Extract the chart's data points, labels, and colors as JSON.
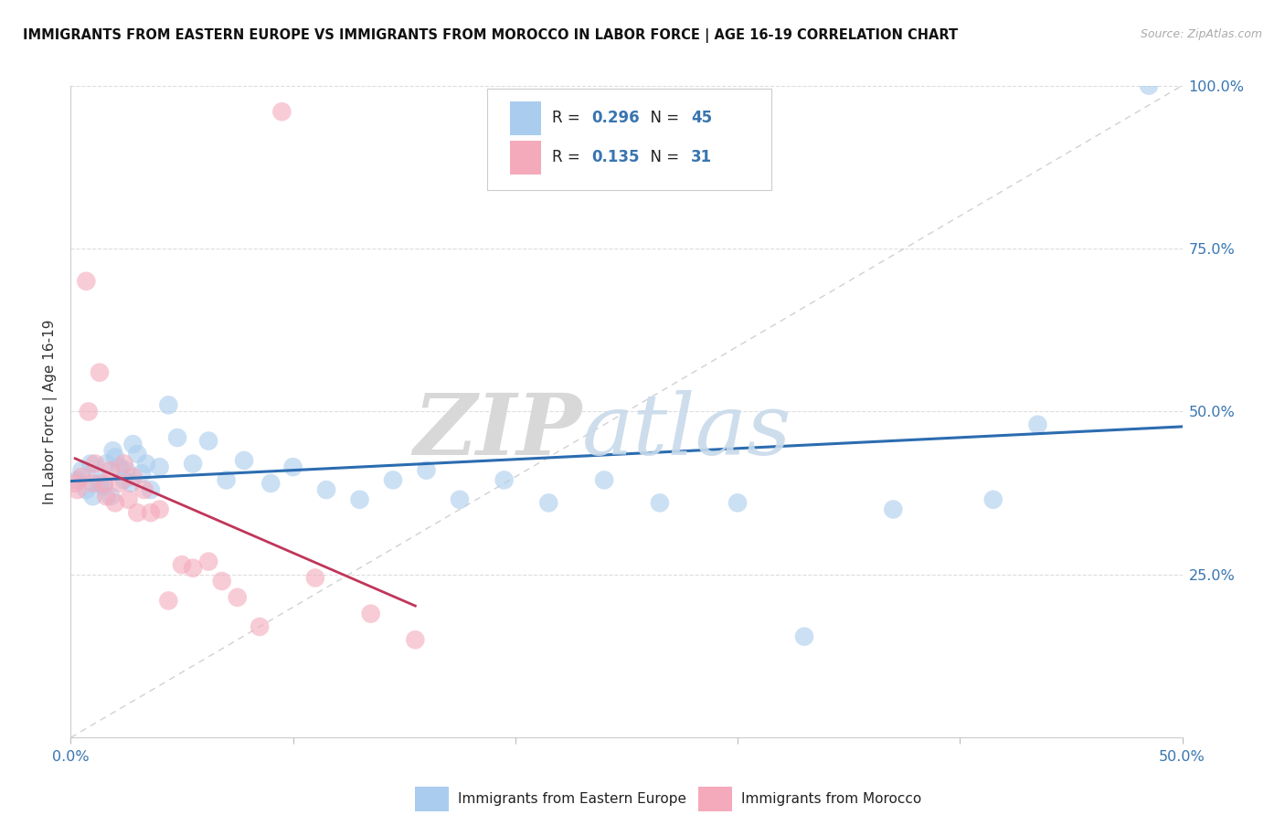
{
  "title": "IMMIGRANTS FROM EASTERN EUROPE VS IMMIGRANTS FROM MOROCCO IN LABOR FORCE | AGE 16-19 CORRELATION CHART",
  "source": "Source: ZipAtlas.com",
  "ylabel": "In Labor Force | Age 16-19",
  "xlim": [
    0.0,
    0.5
  ],
  "ylim": [
    0.0,
    1.0
  ],
  "x_ticks": [
    0.0,
    0.1,
    0.2,
    0.3,
    0.4,
    0.5
  ],
  "x_tick_labels": [
    "0.0%",
    "",
    "",
    "",
    "",
    "50.0%"
  ],
  "y_ticks": [
    0.0,
    0.25,
    0.5,
    0.75,
    1.0
  ],
  "y_tick_labels": [
    "",
    "25.0%",
    "50.0%",
    "75.0%",
    "100.0%"
  ],
  "blue_R": "0.296",
  "blue_N": "45",
  "pink_R": "0.135",
  "pink_N": "31",
  "blue_color": "#aaccee",
  "pink_color": "#f4aabb",
  "blue_line_color": "#2b6cb0",
  "pink_line_color": "#c0365a",
  "grid_color": "#dddddd",
  "grid_style": "--",
  "watermark_zip": "ZIP",
  "watermark_atlas": "atlas",
  "bg_color": "#ffffff",
  "blue_scatter_x": [
    0.003,
    0.005,
    0.007,
    0.009,
    0.01,
    0.012,
    0.013,
    0.015,
    0.016,
    0.018,
    0.019,
    0.02,
    0.022,
    0.024,
    0.025,
    0.027,
    0.028,
    0.03,
    0.032,
    0.034,
    0.036,
    0.04,
    0.044,
    0.048,
    0.055,
    0.062,
    0.07,
    0.078,
    0.09,
    0.1,
    0.115,
    0.13,
    0.145,
    0.16,
    0.175,
    0.195,
    0.215,
    0.24,
    0.265,
    0.3,
    0.33,
    0.37,
    0.415,
    0.435,
    0.485
  ],
  "blue_scatter_y": [
    0.395,
    0.41,
    0.38,
    0.42,
    0.37,
    0.4,
    0.39,
    0.385,
    0.42,
    0.37,
    0.44,
    0.43,
    0.415,
    0.395,
    0.41,
    0.39,
    0.45,
    0.435,
    0.405,
    0.42,
    0.38,
    0.415,
    0.51,
    0.46,
    0.42,
    0.455,
    0.395,
    0.425,
    0.39,
    0.415,
    0.38,
    0.365,
    0.395,
    0.41,
    0.365,
    0.395,
    0.36,
    0.395,
    0.36,
    0.36,
    0.155,
    0.35,
    0.365,
    0.48,
    1.0
  ],
  "pink_scatter_x": [
    0.002,
    0.003,
    0.005,
    0.007,
    0.008,
    0.01,
    0.011,
    0.013,
    0.015,
    0.016,
    0.018,
    0.02,
    0.022,
    0.024,
    0.026,
    0.028,
    0.03,
    0.033,
    0.036,
    0.04,
    0.044,
    0.05,
    0.055,
    0.062,
    0.068,
    0.075,
    0.085,
    0.095,
    0.11,
    0.135,
    0.155
  ],
  "pink_scatter_y": [
    0.39,
    0.38,
    0.4,
    0.7,
    0.5,
    0.39,
    0.42,
    0.56,
    0.39,
    0.37,
    0.41,
    0.36,
    0.39,
    0.42,
    0.365,
    0.4,
    0.345,
    0.38,
    0.345,
    0.35,
    0.21,
    0.265,
    0.26,
    0.27,
    0.24,
    0.215,
    0.17,
    0.96,
    0.245,
    0.19,
    0.15
  ]
}
